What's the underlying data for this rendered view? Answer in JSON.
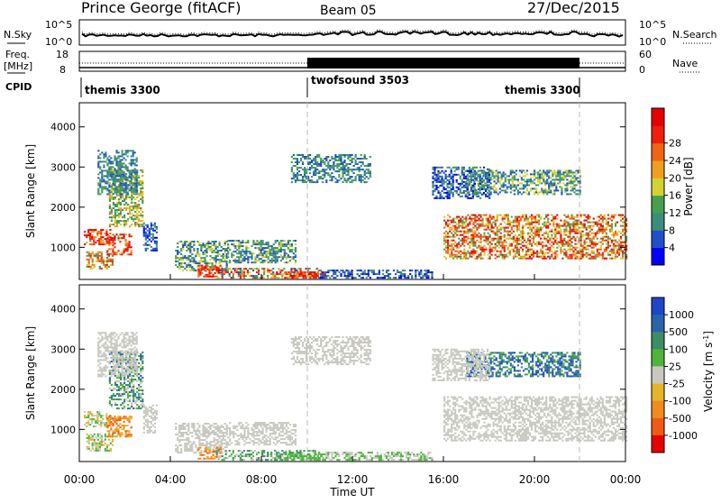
{
  "header": {
    "station": "Prince George (fitACF)",
    "beam": "Beam 05",
    "date": "27/Dec/2015"
  },
  "top_labels": {
    "nsky": "N.Sky",
    "nsearch": "N.Search",
    "freq": "Freq.",
    "freq_unit": "[MHz]",
    "nave": "Nave",
    "cpid": "CPID",
    "nsky_ticks": [
      "10^5",
      "10^0"
    ],
    "freq_ticks": [
      "18",
      "8"
    ],
    "nave_ticks": [
      "60",
      "0"
    ]
  },
  "cpid_segments": [
    {
      "label": "themis 3300",
      "start": 0,
      "end": 10
    },
    {
      "label": "twofsound 3503",
      "start": 10,
      "end": 22
    },
    {
      "label": "themis 3300",
      "start": 22,
      "end": 24
    }
  ],
  "colors": {
    "power": [
      "#0000ff",
      "#2050c8",
      "#3c8c7c",
      "#46a050",
      "#d2d232",
      "#f0a020",
      "#f06414",
      "#f01e0a",
      "#e60000"
    ],
    "velocity": [
      "#1e46c8",
      "#2864aa",
      "#3c8c64",
      "#4eb43c",
      "#c8c8c0",
      "#e6b428",
      "#f08c1e",
      "#f05a14",
      "#e60000"
    ]
  },
  "chart_data": [
    {
      "type": "heatmap",
      "name": "power",
      "ylabel": "Slant Range [km]",
      "xlabel": "",
      "y_ticks": [
        "1000",
        "2000",
        "3000",
        "4000"
      ],
      "colorbar_label": "Power [dB]",
      "colorbar_ticks": [
        "4",
        "8",
        "12",
        "16",
        "20",
        "24",
        "28"
      ],
      "xlim": [
        0,
        24
      ],
      "ylim": [
        200,
        4600
      ]
    },
    {
      "type": "heatmap",
      "name": "velocity",
      "ylabel": "Slant Range [km]",
      "xlabel": "Time UT",
      "x_ticks": [
        "00:00",
        "04:00",
        "08:00",
        "12:00",
        "16:00",
        "20:00",
        "00:00"
      ],
      "y_ticks": [
        "1000",
        "2000",
        "3000",
        "4000"
      ],
      "colorbar_label": "Velocity [m s",
      "colorbar_label_sup": "-1",
      "colorbar_label_end": "]",
      "colorbar_ticks": [
        "1000",
        "500",
        "100",
        "25",
        "-25",
        "-100",
        "-500",
        "-1000"
      ],
      "xlim": [
        0,
        24
      ],
      "ylim": [
        200,
        4600
      ]
    }
  ],
  "echo_regions": [
    {
      "t0": 0.2,
      "t1": 1.4,
      "r0": 1050,
      "r1": 1450,
      "pw": [
        5,
        8
      ],
      "vl": [
        3,
        5
      ]
    },
    {
      "t0": 0.3,
      "t1": 1.5,
      "r0": 450,
      "r1": 900,
      "pw": [
        2,
        7
      ],
      "vl": [
        3,
        5
      ]
    },
    {
      "t0": 1.2,
      "t1": 2.3,
      "r0": 800,
      "r1": 1300,
      "pw": [
        5,
        8
      ],
      "vl": [
        5,
        7
      ]
    },
    {
      "t0": 1.3,
      "t1": 2.8,
      "r0": 1500,
      "r1": 2900,
      "pw": [
        2,
        5
      ],
      "vl": [
        1,
        4
      ]
    },
    {
      "t0": 0.8,
      "t1": 2.5,
      "r0": 2300,
      "r1": 3400,
      "pw": [
        1,
        3
      ],
      "vl": [
        4,
        4
      ]
    },
    {
      "t0": 2.8,
      "t1": 3.4,
      "r0": 900,
      "r1": 1600,
      "pw": [
        0,
        3
      ],
      "vl": [
        4,
        4
      ]
    },
    {
      "t0": 4.2,
      "t1": 6.5,
      "r0": 400,
      "r1": 1150,
      "pw": [
        1,
        4
      ],
      "vl": [
        4,
        4
      ]
    },
    {
      "t0": 5.2,
      "t1": 6.2,
      "r0": 250,
      "r1": 550,
      "pw": [
        6,
        8
      ],
      "vl": [
        5,
        7
      ]
    },
    {
      "t0": 6.5,
      "t1": 9.5,
      "r0": 600,
      "r1": 1150,
      "pw": [
        1,
        4
      ],
      "vl": [
        4,
        4
      ]
    },
    {
      "t0": 6.0,
      "t1": 10.5,
      "r0": 220,
      "r1": 480,
      "pw": [
        1,
        8
      ],
      "vl": [
        2,
        4
      ]
    },
    {
      "t0": 9.0,
      "t1": 10.8,
      "r0": 220,
      "r1": 380,
      "pw": [
        5,
        8
      ],
      "vl": [
        3,
        3
      ]
    },
    {
      "t0": 10.5,
      "t1": 15.5,
      "r0": 220,
      "r1": 420,
      "pw": [
        0,
        2
      ],
      "vl": [
        3,
        4
      ]
    },
    {
      "t0": 9.3,
      "t1": 12.8,
      "r0": 2600,
      "r1": 3300,
      "pw": [
        1,
        3
      ],
      "vl": [
        4,
        4
      ]
    },
    {
      "t0": 16.0,
      "t1": 24.0,
      "r0": 700,
      "r1": 1800,
      "pw": [
        3,
        8
      ],
      "vl": [
        4,
        4
      ]
    },
    {
      "t0": 17.0,
      "t1": 22.0,
      "r0": 2300,
      "r1": 2900,
      "pw": [
        1,
        4
      ],
      "vl": [
        0,
        3
      ]
    },
    {
      "t0": 15.5,
      "t1": 18.0,
      "r0": 2200,
      "r1": 3000,
      "pw": [
        0,
        3
      ],
      "vl": [
        4,
        4
      ]
    }
  ]
}
